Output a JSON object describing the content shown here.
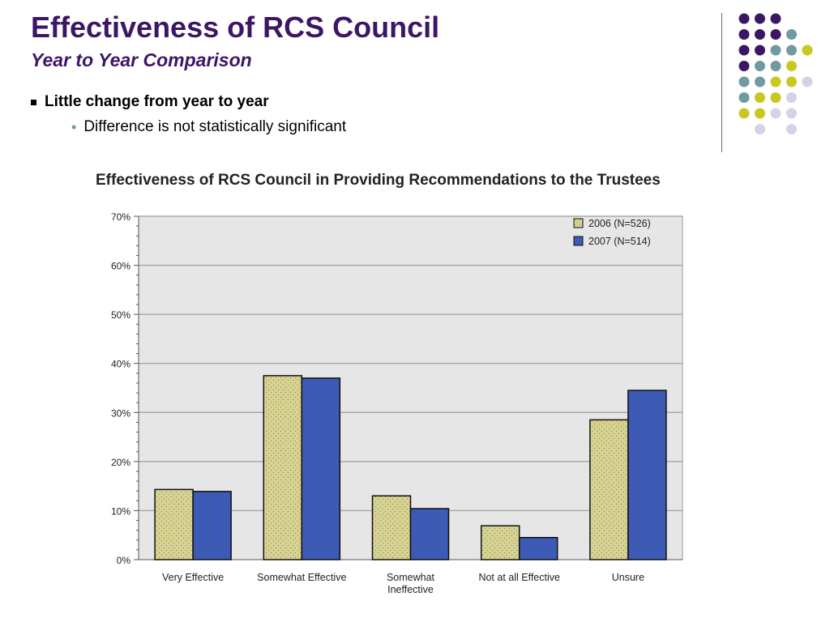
{
  "slide": {
    "title": "Effectiveness of RCS Council",
    "subtitle": "Year to Year Comparison",
    "bullets": [
      {
        "text": "Little change from year to year",
        "level": 1
      },
      {
        "text": "Difference is not statistically significant",
        "level": 2
      }
    ]
  },
  "colors": {
    "title": "#3d1566",
    "dot_purple": "#3d1566",
    "dot_teal": "#6e9aa0",
    "dot_yellow": "#c8c81e",
    "dot_lavender": "#d3d3e6",
    "bar_2006": "#d6d392",
    "bar_2007": "#3d5ab4",
    "plot_bg": "#e6e6e6"
  },
  "chart_data": {
    "type": "bar",
    "title": "Effectiveness of RCS Council in Providing Recommendations to the Trustees",
    "categories": [
      "Very Effective",
      "Somewhat Effective",
      "Somewhat Ineffective",
      "Not at all Effective",
      "Unsure"
    ],
    "category_lines": [
      [
        "Very Effective"
      ],
      [
        "Somewhat Effective"
      ],
      [
        "Somewhat",
        "Ineffective"
      ],
      [
        "Not at all Effective"
      ],
      [
        "Unsure"
      ]
    ],
    "series": [
      {
        "name": "2006 (N=526)",
        "values": [
          14.3,
          37.5,
          13.0,
          6.9,
          28.5
        ]
      },
      {
        "name": "2007 (N=514)",
        "values": [
          13.9,
          37.0,
          10.4,
          4.5,
          34.5
        ]
      }
    ],
    "yticks": [
      "0%",
      "10%",
      "20%",
      "30%",
      "40%",
      "50%",
      "60%",
      "70%"
    ],
    "ylim": [
      0,
      70
    ],
    "grid": true,
    "legend": "top-right",
    "xlabel": "",
    "ylabel": ""
  }
}
